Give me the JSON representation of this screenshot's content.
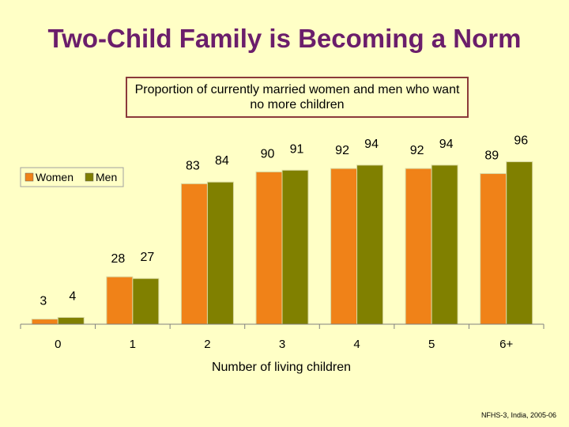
{
  "title": "Two-Child Family is Becoming a Norm",
  "source": "NFHS-3, India, 2005-06",
  "chart_data": {
    "type": "bar",
    "title": "Proportion of currently married women and men who want no more children",
    "xlabel": "Number of living children",
    "ylabel": "",
    "ylim": [
      0,
      100
    ],
    "grid": false,
    "legend": "top-left",
    "categories": [
      "0",
      "1",
      "2",
      "3",
      "4",
      "5",
      "6+"
    ],
    "series": [
      {
        "name": "Women",
        "color": "#f08218",
        "values": [
          3,
          28,
          83,
          90,
          92,
          92,
          89
        ]
      },
      {
        "name": "Men",
        "color": "#808000",
        "values": [
          4,
          27,
          84,
          91,
          94,
          94,
          96
        ]
      }
    ]
  }
}
